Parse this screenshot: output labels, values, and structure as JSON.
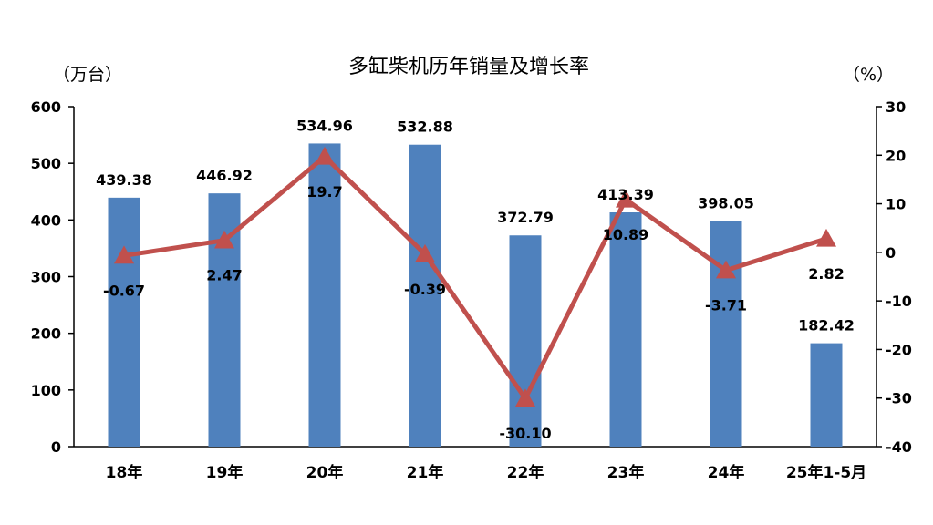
{
  "chart_data": {
    "type": "bar",
    "title": "多缸柴机历年销量及增长率",
    "ylabel": "（万台）",
    "y2label": "（%）",
    "categories": [
      "18年",
      "19年",
      "20年",
      "21年",
      "22年",
      "23年",
      "24年",
      "25年1-5月"
    ],
    "ylim": [
      0,
      600
    ],
    "yticks": [
      "0",
      "100",
      "200",
      "300",
      "400",
      "500",
      "600"
    ],
    "y2lim": [
      -40,
      30
    ],
    "y2ticks": [
      "-40",
      "-30",
      "-20",
      "-10",
      "0",
      "10",
      "20",
      "30"
    ],
    "series": [
      {
        "values": [
          439.38,
          446.92,
          534.96,
          532.88,
          372.79,
          413.39,
          398.05,
          182.42
        ],
        "labels": [
          "439.38",
          "446.92",
          "534.96",
          "532.88",
          "372.79",
          "413.39",
          "398.05",
          "182.42"
        ],
        "color": "#4f81bd"
      },
      {
        "axis": "right",
        "type": "line",
        "values": [
          -0.67,
          2.47,
          19.7,
          -0.39,
          -30.1,
          10.89,
          -3.71,
          2.82
        ],
        "labels": [
          "-0.67",
          "2.47",
          "19.7",
          "-0.39",
          "-30.10",
          "10.89",
          "-3.71",
          "2.82"
        ],
        "color": "#c0504d",
        "marker": "triangle"
      }
    ]
  }
}
